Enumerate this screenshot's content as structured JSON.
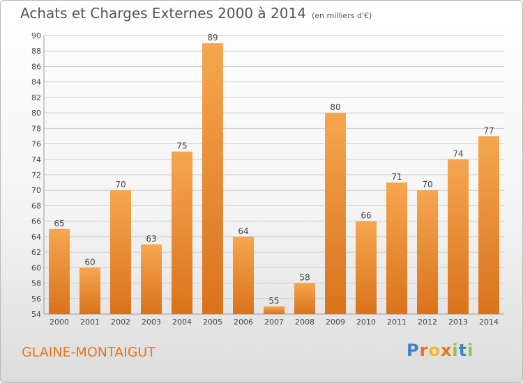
{
  "title": "Achats et Charges Externes 2000 à 2014",
  "subtitle": "(en milliers d'€)",
  "place": "GLAINE-MONTAIGUT",
  "logo": {
    "text": "Proxiti",
    "colors": [
      "#3a86c6",
      "#e8731d",
      "#f3b62a",
      "#e8731d",
      "#8bc34a",
      "#3a86c6",
      "#8bc34a"
    ]
  },
  "colors": {
    "bar_top": "#f6a650",
    "bar_bottom": "#d9731b",
    "grid": "#cccccc",
    "place": "#e8731d"
  },
  "chart_data": {
    "type": "bar",
    "categories": [
      "2000",
      "2001",
      "2002",
      "2003",
      "2004",
      "2005",
      "2006",
      "2007",
      "2008",
      "2009",
      "2010",
      "2011",
      "2012",
      "2013",
      "2014"
    ],
    "values": [
      65,
      60,
      70,
      63,
      75,
      89,
      64,
      55,
      58,
      80,
      66,
      71,
      70,
      74,
      77
    ],
    "title": "Achats et Charges Externes 2000 à 2014",
    "subtitle": "(en milliers d'€)",
    "ylim": [
      54,
      90
    ],
    "yticks": [
      54,
      56,
      58,
      60,
      62,
      64,
      66,
      68,
      70,
      72,
      74,
      76,
      78,
      80,
      82,
      84,
      86,
      88,
      90
    ],
    "grid": true
  }
}
